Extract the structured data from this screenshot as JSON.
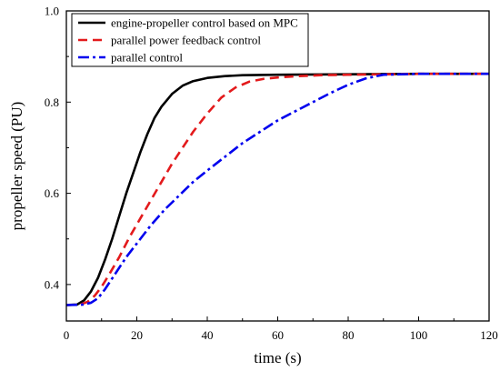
{
  "chart_data": {
    "type": "line",
    "xlabel": "time (s)",
    "ylabel": "propeller speed (PU)",
    "xlim": [
      0,
      120
    ],
    "ylim": [
      0.32,
      1.0
    ],
    "xticks": [
      0,
      20,
      40,
      60,
      80,
      100,
      120
    ],
    "xtick_labels": [
      "0",
      "20",
      "40",
      "60",
      "80",
      "100",
      "120"
    ],
    "yticks": [
      0.4,
      0.6,
      0.8,
      1.0
    ],
    "ytick_labels": [
      "0.4",
      "0.6",
      "0.8",
      "1.0"
    ],
    "grid": false,
    "legend_position": "top-left",
    "series": [
      {
        "name": "engine-propeller control based on MPC",
        "color": "#000000",
        "dash": "solid",
        "x": [
          0,
          3,
          5,
          7,
          9,
          11,
          13,
          15,
          17,
          19,
          21,
          23,
          25,
          27,
          30,
          33,
          36,
          40,
          45,
          50,
          60,
          80,
          100,
          120
        ],
        "y": [
          0.355,
          0.356,
          0.365,
          0.385,
          0.415,
          0.455,
          0.5,
          0.55,
          0.6,
          0.645,
          0.69,
          0.73,
          0.765,
          0.79,
          0.818,
          0.836,
          0.846,
          0.853,
          0.857,
          0.859,
          0.86,
          0.861,
          0.862,
          0.862
        ]
      },
      {
        "name": "parallel power feedback control",
        "color": "#e31a1c",
        "dash": "dash",
        "x": [
          0,
          4,
          6,
          8,
          10,
          12,
          15,
          18,
          21,
          24,
          27,
          30,
          33,
          36,
          40,
          44,
          48,
          52,
          56,
          60,
          66,
          72,
          80,
          90,
          100,
          120
        ],
        "y": [
          0.355,
          0.356,
          0.362,
          0.375,
          0.395,
          0.42,
          0.46,
          0.505,
          0.545,
          0.585,
          0.625,
          0.665,
          0.7,
          0.735,
          0.775,
          0.81,
          0.832,
          0.845,
          0.851,
          0.854,
          0.857,
          0.859,
          0.86,
          0.861,
          0.862,
          0.862
        ]
      },
      {
        "name": "parallel control",
        "color": "#0000ee",
        "dash": "dashdot",
        "x": [
          0,
          5,
          7,
          9,
          11,
          14,
          17,
          20,
          24,
          28,
          32,
          36,
          40,
          45,
          50,
          55,
          60,
          65,
          70,
          75,
          80,
          85,
          90,
          100,
          110,
          120
        ],
        "y": [
          0.355,
          0.356,
          0.36,
          0.37,
          0.39,
          0.425,
          0.46,
          0.49,
          0.53,
          0.565,
          0.595,
          0.625,
          0.65,
          0.68,
          0.71,
          0.735,
          0.76,
          0.78,
          0.8,
          0.82,
          0.838,
          0.852,
          0.86,
          0.862,
          0.862,
          0.862
        ]
      }
    ]
  }
}
